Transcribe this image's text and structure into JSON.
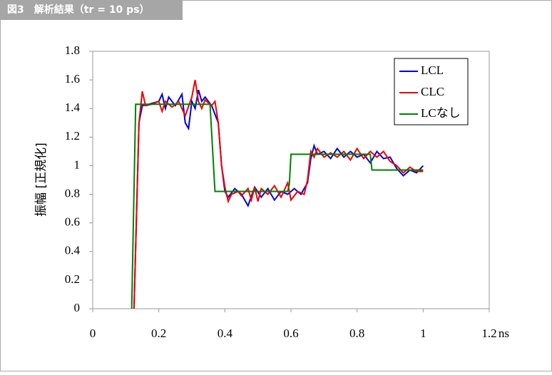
{
  "chart_data": {
    "type": "line",
    "caption": "図3　解析結果（tr = 10 ps）",
    "xlabel": "ns",
    "ylabel": "振幅 [正規化]",
    "xlim": [
      0,
      1.2
    ],
    "xticks": [
      0,
      0.2,
      0.4,
      0.6,
      0.8,
      1,
      1.2
    ],
    "ylim": [
      0,
      1.8
    ],
    "yticks": [
      0,
      0.2,
      0.4,
      0.6,
      0.8,
      1,
      1.2,
      1.4,
      1.6,
      1.8
    ],
    "grid": false,
    "legend": "top-right",
    "series": [
      {
        "name": "LCL",
        "color": "#0000dd",
        "x": [
          0.125,
          0.14,
          0.15,
          0.17,
          0.2,
          0.21,
          0.22,
          0.23,
          0.25,
          0.27,
          0.28,
          0.29,
          0.3,
          0.31,
          0.32,
          0.33,
          0.34,
          0.36,
          0.38,
          0.39,
          0.4,
          0.41,
          0.43,
          0.45,
          0.47,
          0.49,
          0.51,
          0.53,
          0.55,
          0.57,
          0.59,
          0.61,
          0.63,
          0.65,
          0.66,
          0.67,
          0.68,
          0.7,
          0.72,
          0.74,
          0.76,
          0.78,
          0.8,
          0.82,
          0.84,
          0.86,
          0.88,
          0.9,
          0.92,
          0.94,
          0.96,
          0.98,
          1.0
        ],
        "values": [
          0,
          1.3,
          1.42,
          1.43,
          1.45,
          1.5,
          1.4,
          1.48,
          1.42,
          1.5,
          1.3,
          1.26,
          1.45,
          1.4,
          1.53,
          1.45,
          1.48,
          1.42,
          1.3,
          1.0,
          0.82,
          0.78,
          0.84,
          0.8,
          0.72,
          0.85,
          0.78,
          0.84,
          0.76,
          0.82,
          0.8,
          0.84,
          0.8,
          0.88,
          1.05,
          1.14,
          1.08,
          1.1,
          1.05,
          1.12,
          1.06,
          1.1,
          1.06,
          1.08,
          1.02,
          1.1,
          1.05,
          1.06,
          0.98,
          0.93,
          0.97,
          0.95,
          1.0
        ]
      },
      {
        "name": "CLC",
        "color": "#ee0000",
        "x": [
          0.125,
          0.14,
          0.15,
          0.16,
          0.18,
          0.2,
          0.21,
          0.22,
          0.24,
          0.26,
          0.28,
          0.3,
          0.31,
          0.32,
          0.33,
          0.34,
          0.36,
          0.37,
          0.38,
          0.39,
          0.4,
          0.41,
          0.42,
          0.44,
          0.45,
          0.47,
          0.48,
          0.49,
          0.5,
          0.51,
          0.53,
          0.55,
          0.57,
          0.59,
          0.6,
          0.62,
          0.64,
          0.65,
          0.66,
          0.67,
          0.68,
          0.7,
          0.72,
          0.74,
          0.76,
          0.78,
          0.8,
          0.82,
          0.84,
          0.86,
          0.88,
          0.9,
          0.92,
          0.94,
          0.96,
          0.98,
          1.0
        ],
        "values": [
          0,
          1.3,
          1.52,
          1.42,
          1.43,
          1.45,
          1.38,
          1.45,
          1.41,
          1.45,
          1.35,
          1.48,
          1.6,
          1.45,
          1.4,
          1.46,
          1.42,
          1.45,
          1.3,
          1.0,
          0.85,
          0.75,
          0.8,
          0.82,
          0.79,
          0.84,
          0.76,
          0.85,
          0.75,
          0.84,
          0.8,
          0.86,
          0.78,
          0.88,
          0.76,
          0.82,
          0.8,
          0.9,
          1.1,
          1.06,
          1.12,
          1.06,
          1.09,
          1.06,
          1.1,
          1.04,
          1.12,
          1.05,
          1.1,
          1.06,
          1.1,
          1.03,
          1.0,
          0.95,
          0.99,
          0.96,
          0.96
        ]
      },
      {
        "name": "LCなし",
        "color": "#008000",
        "x": [
          0.118,
          0.13,
          0.355,
          0.37,
          0.59,
          0.595,
          0.6,
          0.84,
          0.845,
          1.0
        ],
        "values": [
          0,
          1.43,
          1.43,
          0.82,
          0.82,
          0.87,
          1.08,
          1.08,
          0.97,
          0.97
        ]
      }
    ]
  }
}
